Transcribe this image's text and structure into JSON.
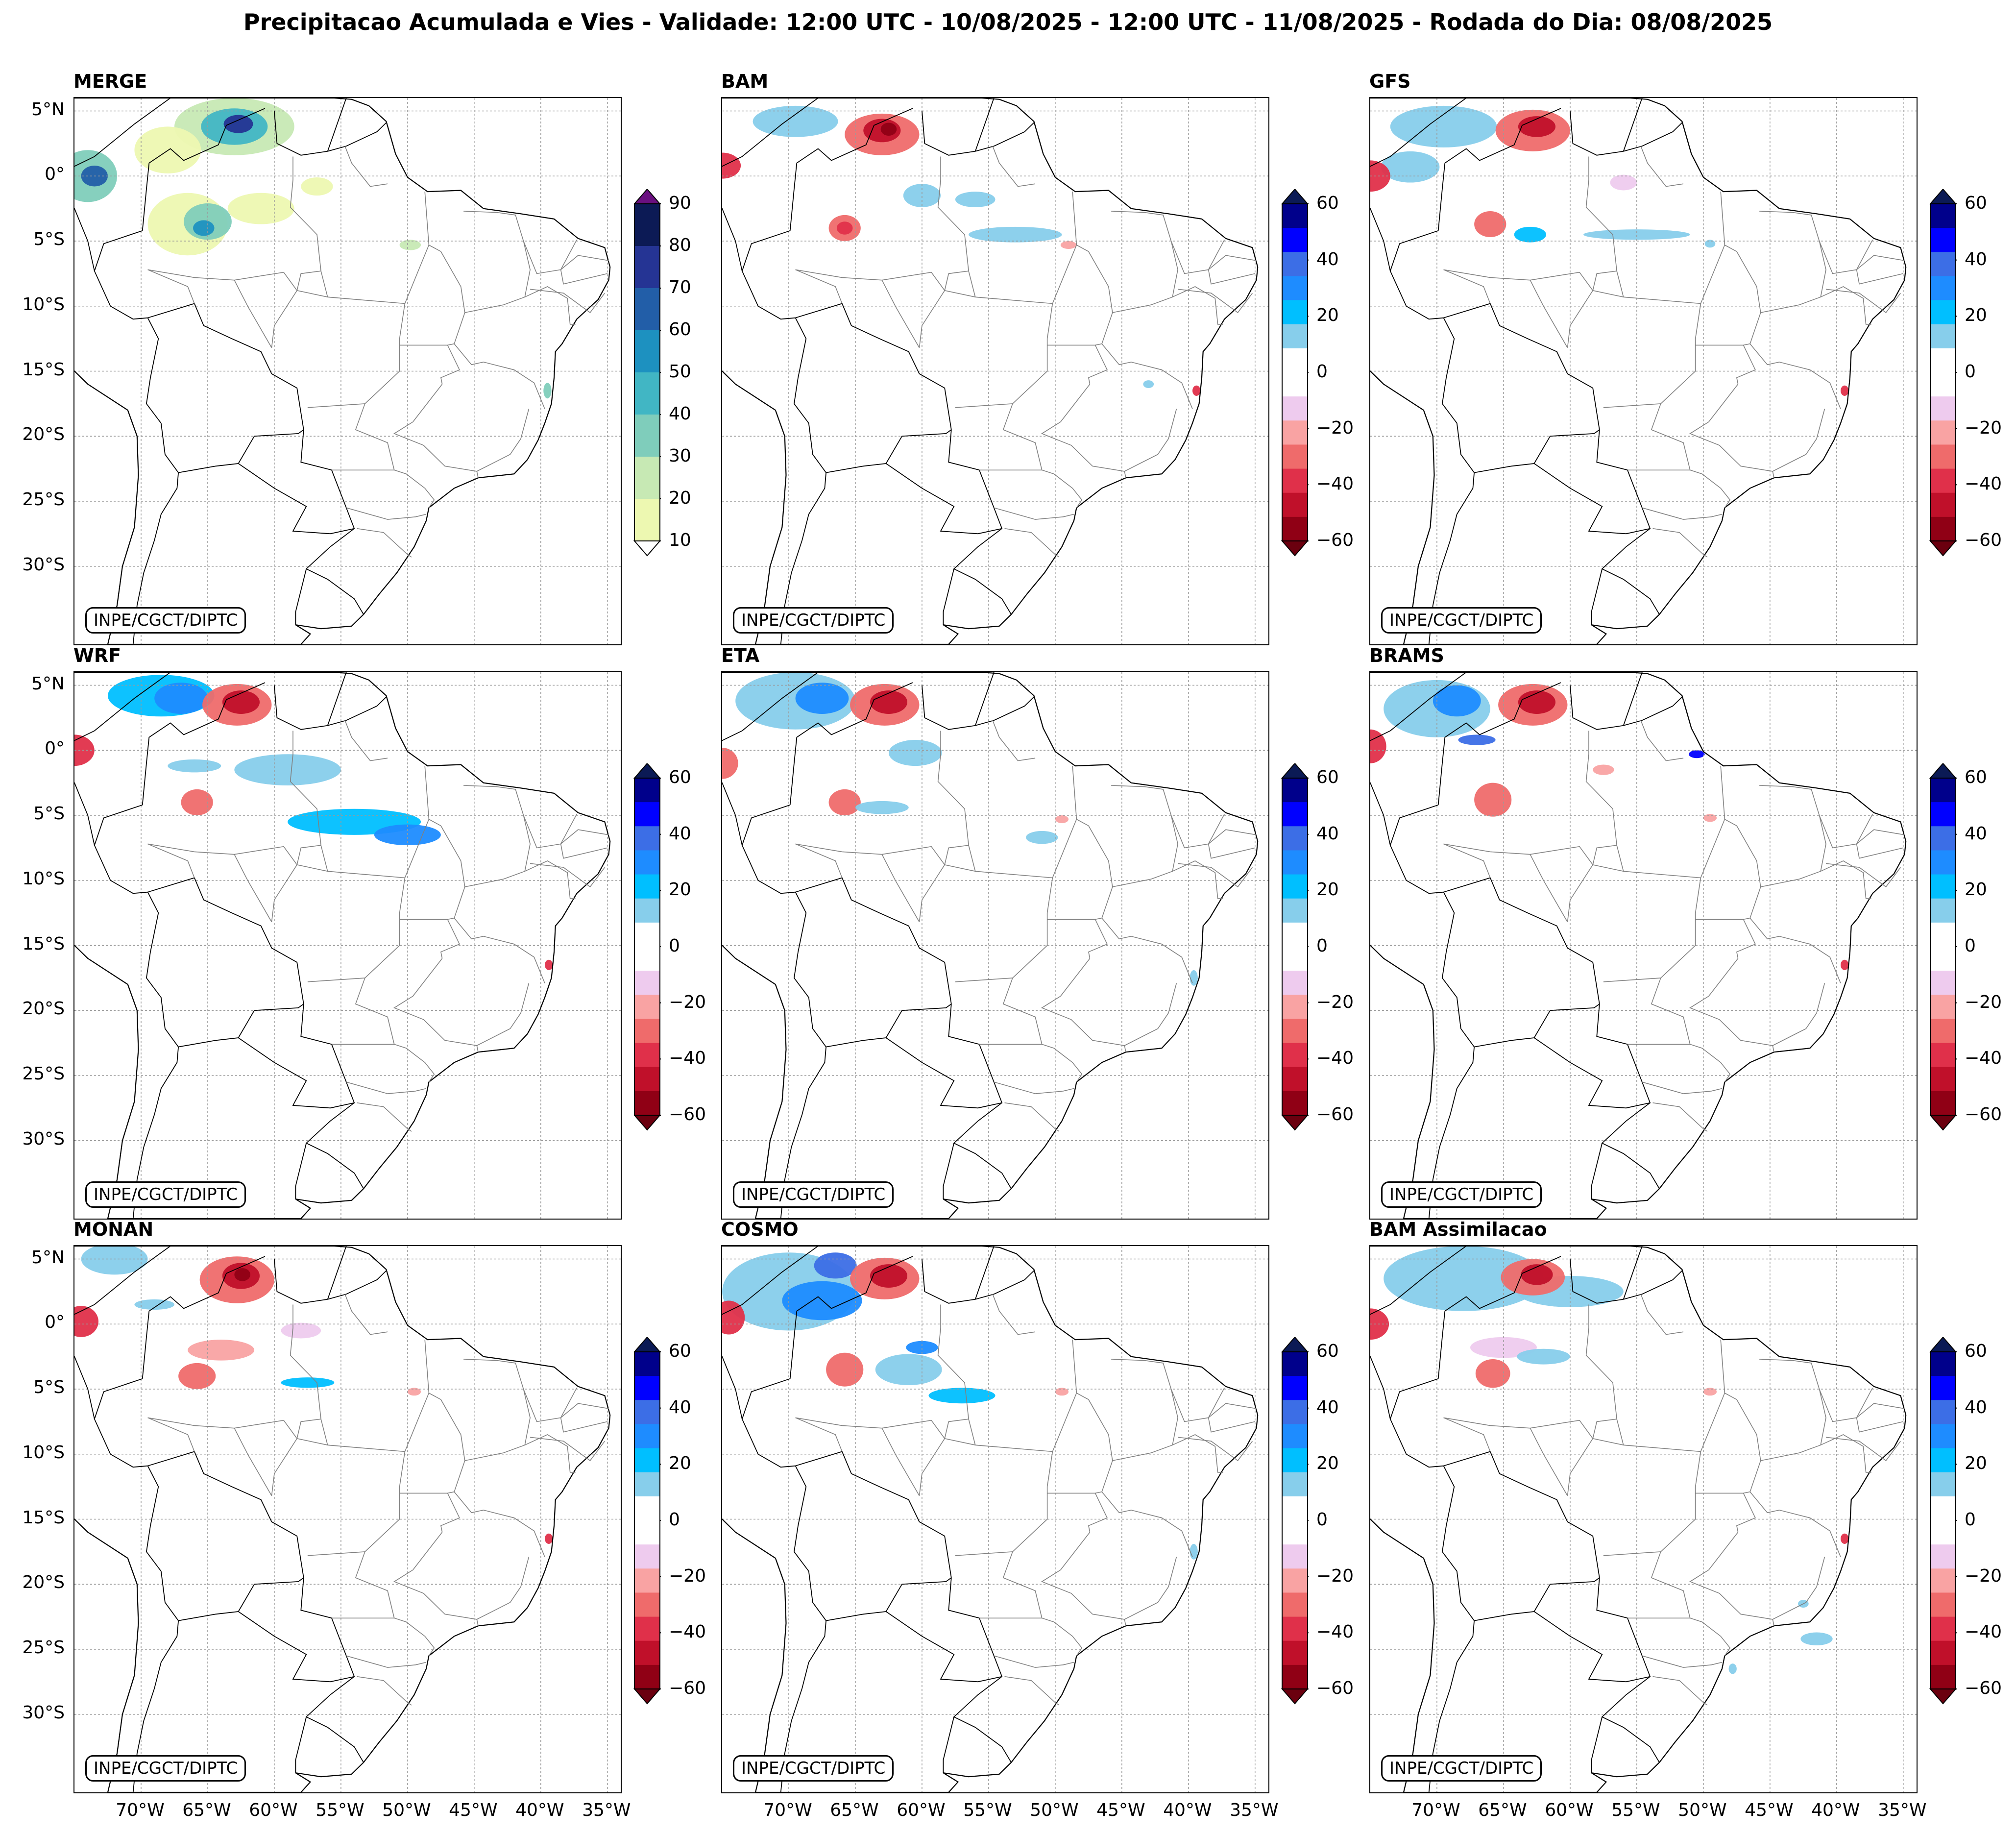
{
  "figure": {
    "title": "Precipitacao Acumulada e Vies - Validade: 12:00 UTC - 10/08/2025 - 12:00 UTC - 11/08/2025 - Rodada do Dia: 08/08/2025",
    "credit": "INPE/CGCT/DIPTC"
  },
  "axes": {
    "lat_labels": [
      "5°N",
      "0°",
      "5°S",
      "10°S",
      "15°S",
      "20°S",
      "25°S",
      "30°S"
    ],
    "lon_labels": [
      "70°W",
      "65°W",
      "60°W",
      "55°W",
      "50°W",
      "45°W",
      "40°W",
      "35°W"
    ]
  },
  "colorbars": {
    "precip": {
      "ticks": [
        "90",
        "80",
        "70",
        "60",
        "50",
        "40",
        "30",
        "20",
        "10"
      ],
      "colors": [
        "#0c1a55",
        "#253494",
        "#225ea8",
        "#1d91c0",
        "#41b6c4",
        "#7fcdbb",
        "#c7e9b4",
        "#edf8b1"
      ],
      "arrow_top": "#6a1080",
      "arrow_bottom": "#ffffff"
    },
    "bias": {
      "ticks": [
        "60",
        "40",
        "20",
        "0",
        "−20",
        "−40",
        "−60"
      ],
      "colors": [
        "#00008b",
        "#0000ff",
        "#3c6ee6",
        "#1e8cff",
        "#00bfff",
        "#87ceeb",
        "#ffffff",
        "#ffffff",
        "#eecbee",
        "#f9a3a3",
        "#ef6b6b",
        "#e0304a",
        "#c0102a",
        "#900015"
      ],
      "arrow_top": "#0b1a55",
      "arrow_bottom": "#6b000f"
    }
  },
  "panels": [
    {
      "name": "MERGE",
      "type": "precip"
    },
    {
      "name": "BAM",
      "type": "bias"
    },
    {
      "name": "GFS",
      "type": "bias"
    },
    {
      "name": "WRF",
      "type": "bias"
    },
    {
      "name": "ETA",
      "type": "bias"
    },
    {
      "name": "BRAMS",
      "type": "bias"
    },
    {
      "name": "MONAN",
      "type": "bias"
    },
    {
      "name": "COSMO",
      "type": "bias"
    },
    {
      "name": "BAM Assimilacao",
      "type": "bias"
    }
  ]
}
